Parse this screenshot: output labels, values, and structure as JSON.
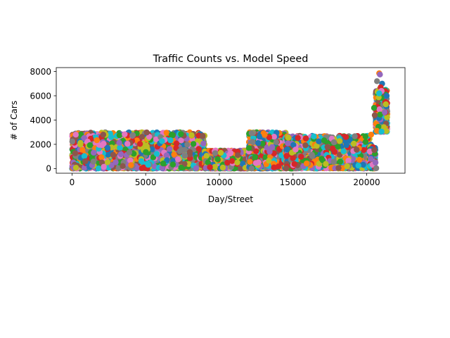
{
  "chart_data": {
    "type": "scatter",
    "title": "Traffic Counts vs. Model Speed",
    "xlabel": "Day/Street",
    "ylabel": "# of Cars",
    "xlim": [
      -1070,
      22600
    ],
    "ylim": [
      -380,
      8320
    ],
    "xticks": [
      0,
      5000,
      10000,
      15000,
      20000
    ],
    "yticks": [
      0,
      2000,
      4000,
      6000,
      8000
    ],
    "grid": false,
    "legend": "none",
    "colors": [
      "#1f77b4",
      "#ff7f0e",
      "#2ca02c",
      "#d62728",
      "#9467bd",
      "#8c564b",
      "#e377c2",
      "#7f7f7f",
      "#bcbd22",
      "#17becf"
    ],
    "segments": [
      {
        "x_range": [
          0,
          9000
        ],
        "y_max": 3000,
        "density": 0.28
      },
      {
        "x_range": [
          9000,
          12000
        ],
        "y_max": 1500,
        "density": 0.3
      },
      {
        "x_range": [
          12000,
          14500
        ],
        "y_max": 3000,
        "density": 0.3
      },
      {
        "x_range": [
          14500,
          20200
        ],
        "y_max": 2700,
        "density": 0.26
      },
      {
        "x_range": [
          20200,
          20600
        ],
        "y_max": 2000,
        "density": 0.3
      },
      {
        "x_range": [
          20600,
          21400
        ],
        "y_max": 6500,
        "y_min": 3000,
        "density": 0.4
      }
    ],
    "highlights": [
      {
        "x": 20850,
        "y": 7850
      },
      {
        "x": 20900,
        "y": 7750
      },
      {
        "x": 20700,
        "y": 7200
      },
      {
        "x": 21050,
        "y": 7000
      },
      {
        "x": 20950,
        "y": 6700
      },
      {
        "x": 21000,
        "y": 6400
      },
      {
        "x": 20850,
        "y": 6200
      },
      {
        "x": 20500,
        "y": 5000
      },
      {
        "x": 20550,
        "y": 4400
      },
      {
        "x": 21300,
        "y": 5300
      },
      {
        "x": 20300,
        "y": 2800
      },
      {
        "x": 20600,
        "y": 500
      },
      {
        "x": 20650,
        "y": 30
      }
    ]
  }
}
